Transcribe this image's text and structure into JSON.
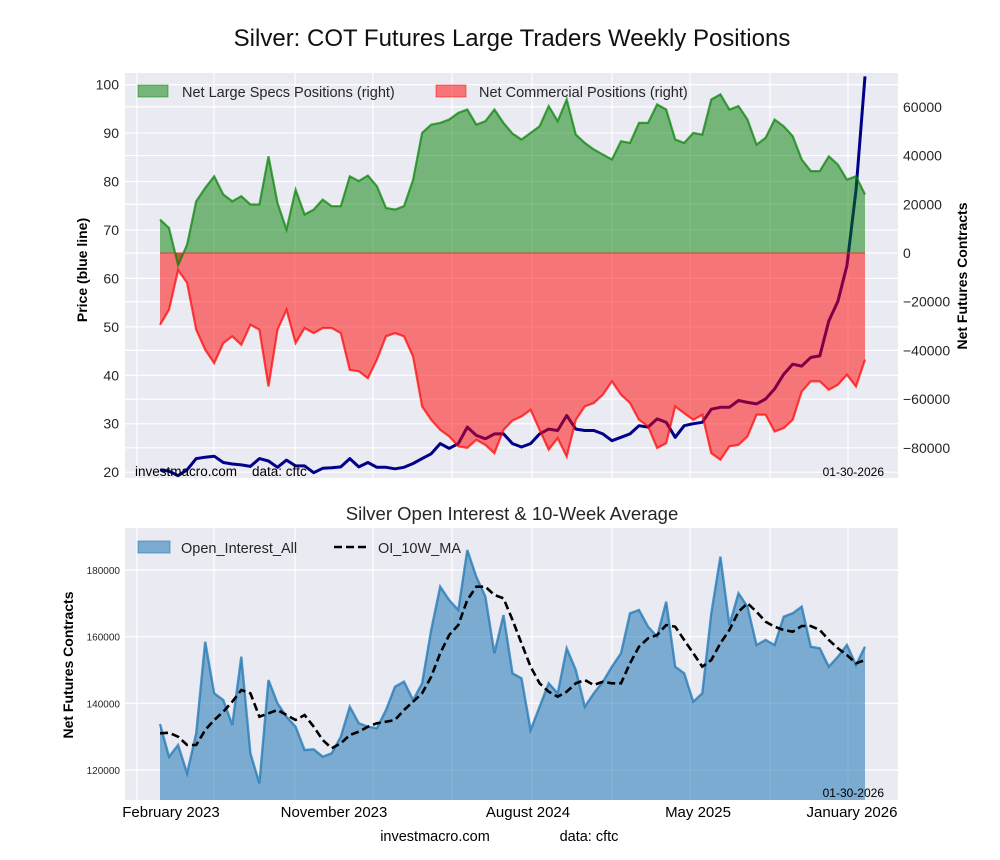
{
  "chart_data": [
    {
      "type": "area",
      "title": "Silver: COT Futures Large Traders Weekly Positions",
      "ylabel_left": "Price (blue line)",
      "ylabel_right": "Net Futures Contracts",
      "grid": true,
      "legend": "top-left",
      "left_ylim": [
        18.8,
        102.4
      ],
      "right_ylim": [
        -92400,
        73900
      ],
      "left_ticks": [
        20,
        30,
        40,
        50,
        60,
        70,
        80,
        90,
        100
      ],
      "right_ticks": [
        -80000,
        -60000,
        -40000,
        -20000,
        0,
        20000,
        40000,
        60000
      ],
      "annotation_site": "investmacro.com",
      "annotation_source": "data: cftc",
      "annotation_date": "01-30-2026",
      "dates": [
        "2023-01-31",
        "2023-02-14",
        "2023-02-28",
        "2023-03-14",
        "2023-03-28",
        "2023-04-11",
        "2023-04-25",
        "2023-05-09",
        "2023-05-23",
        "2023-06-06",
        "2023-06-20",
        "2023-07-04",
        "2023-07-18",
        "2023-08-01",
        "2023-08-15",
        "2023-08-29",
        "2023-09-12",
        "2023-09-26",
        "2023-10-10",
        "2023-10-24",
        "2023-11-07",
        "2023-11-21",
        "2023-12-05",
        "2023-12-19",
        "2024-01-02",
        "2024-01-16",
        "2024-01-30",
        "2024-02-13",
        "2024-02-27",
        "2024-03-12",
        "2024-03-26",
        "2024-04-09",
        "2024-04-23",
        "2024-05-07",
        "2024-05-21",
        "2024-06-04",
        "2024-06-18",
        "2024-07-02",
        "2024-07-16",
        "2024-07-30",
        "2024-08-13",
        "2024-08-27",
        "2024-09-10",
        "2024-09-24",
        "2024-10-08",
        "2024-10-22",
        "2024-11-05",
        "2024-11-19",
        "2024-12-03",
        "2024-12-17",
        "2024-12-31",
        "2025-01-14",
        "2025-01-28",
        "2025-02-11",
        "2025-02-25",
        "2025-03-11",
        "2025-03-25",
        "2025-04-08",
        "2025-04-22",
        "2025-05-06",
        "2025-05-20",
        "2025-06-03",
        "2025-06-17",
        "2025-07-01",
        "2025-07-15",
        "2025-07-29",
        "2025-08-12",
        "2025-08-26",
        "2025-09-09",
        "2025-09-23",
        "2025-10-07",
        "2025-10-21",
        "2025-11-04",
        "2025-11-18",
        "2025-12-02",
        "2025-12-16",
        "2025-12-30",
        "2026-01-13",
        "2026-01-27"
      ],
      "series": [
        {
          "name": "Net Large Specs Positions (right)",
          "axis": "right",
          "color": "#008000",
          "values": [
            13700,
            10300,
            -5000,
            3400,
            21200,
            26700,
            31500,
            24000,
            21200,
            23300,
            19900,
            19900,
            39700,
            20500,
            9600,
            26000,
            15800,
            17800,
            21900,
            19200,
            19200,
            31500,
            29500,
            31800,
            27400,
            18500,
            17800,
            19200,
            30100,
            49300,
            52700,
            53400,
            54800,
            57500,
            58900,
            52700,
            54100,
            58900,
            53400,
            49000,
            46600,
            49300,
            52000,
            60300,
            54100,
            63000,
            48600,
            45200,
            42500,
            40400,
            38400,
            45900,
            45200,
            53400,
            53400,
            61000,
            58900,
            46600,
            45200,
            49300,
            48600,
            63000,
            65100,
            58900,
            60300,
            54800,
            44500,
            47300,
            54800,
            52000,
            48000,
            38400,
            33600,
            33600,
            39700,
            36300,
            30100,
            31500,
            24000
          ]
        },
        {
          "name": "Net Commercial Positions (right)",
          "axis": "right",
          "color": "#ff0000",
          "values": [
            -29500,
            -23300,
            -7000,
            -12300,
            -31500,
            -39700,
            -45200,
            -37000,
            -34200,
            -37700,
            -29500,
            -31500,
            -54800,
            -31500,
            -23300,
            -37000,
            -30800,
            -32900,
            -30800,
            -30800,
            -32900,
            -48000,
            -48600,
            -51400,
            -43800,
            -34200,
            -32900,
            -34200,
            -42500,
            -63000,
            -68500,
            -72600,
            -75300,
            -79400,
            -80000,
            -76700,
            -78800,
            -82200,
            -72600,
            -68800,
            -67100,
            -64400,
            -72600,
            -80800,
            -76000,
            -83600,
            -68500,
            -63000,
            -61600,
            -58200,
            -52700,
            -58200,
            -61600,
            -68500,
            -71200,
            -80100,
            -78100,
            -63000,
            -65800,
            -68500,
            -66400,
            -82200,
            -84900,
            -79400,
            -78800,
            -75300,
            -66400,
            -66400,
            -73300,
            -71900,
            -68500,
            -56900,
            -52700,
            -52700,
            -56200,
            -54100,
            -50000,
            -54800,
            -43800
          ]
        },
        {
          "axis": "left",
          "color": "#00008b",
          "values": [
            20.5,
            20.2,
            19.3,
            20.5,
            22.8,
            23.1,
            23.3,
            22.0,
            21.7,
            21.5,
            21.2,
            22.8,
            22.3,
            21.0,
            22.5,
            21.3,
            21.3,
            19.9,
            20.8,
            20.9,
            21.1,
            22.8,
            21.1,
            22.0,
            21.0,
            21.0,
            20.7,
            21.0,
            21.8,
            22.8,
            23.8,
            25.9,
            24.9,
            25.9,
            29.3,
            27.6,
            26.9,
            27.9,
            27.9,
            25.9,
            25.2,
            25.9,
            27.9,
            28.9,
            28.6,
            31.7,
            28.9,
            28.6,
            28.6,
            27.9,
            26.5,
            27.2,
            27.9,
            29.6,
            29.3,
            31.0,
            30.3,
            27.2,
            29.6,
            30.0,
            30.3,
            33.0,
            33.4,
            33.4,
            34.8,
            34.4,
            34.1,
            35.1,
            37.2,
            40.2,
            42.3,
            41.9,
            43.7,
            44.0,
            51.2,
            55.3,
            62.6,
            78.2,
            101.7
          ]
        }
      ]
    },
    {
      "type": "area",
      "title": "Silver Open Interest & 10-Week Average",
      "ylabel": "Net Futures Contracts",
      "grid": true,
      "legend": "top-left",
      "ylim": [
        111000,
        192600
      ],
      "y_ticks": [
        120000,
        140000,
        160000,
        180000
      ],
      "x_tick_labels": [
        "February 2023",
        "November 2023",
        "August 2024",
        "May 2025",
        "January 2026"
      ],
      "annotation_date": "01-30-2026",
      "series": [
        {
          "name": "Open_Interest_All",
          "style": "filled area",
          "color": "#1f77b4",
          "values": [
            133800,
            124000,
            127500,
            119000,
            131000,
            158500,
            143000,
            141000,
            133500,
            154000,
            125000,
            116000,
            147000,
            140000,
            136000,
            133000,
            126000,
            126200,
            124000,
            125000,
            130000,
            139000,
            134000,
            133000,
            132500,
            138000,
            145000,
            146500,
            141000,
            146000,
            162000,
            175000,
            171000,
            168000,
            186000,
            178000,
            172000,
            155000,
            166500,
            149000,
            147500,
            132000,
            139000,
            146000,
            143000,
            156500,
            150000,
            139000,
            143000,
            146500,
            151000,
            155000,
            167000,
            168000,
            163000,
            160000,
            170500,
            151000,
            149000,
            140500,
            143000,
            167000,
            184000,
            163500,
            173000,
            169000,
            157500,
            159000,
            157500,
            166000,
            167000,
            169000,
            157000,
            156500,
            151000,
            154000,
            157500,
            151500,
            157000
          ]
        },
        {
          "name": "OI_10W_MA",
          "style": "dashed line",
          "color": "#000000",
          "values": [
            131000,
            131200,
            130000,
            127500,
            127500,
            132000,
            135000,
            137500,
            140500,
            144000,
            143000,
            136000,
            137000,
            138000,
            136500,
            135000,
            136500,
            133000,
            129000,
            126500,
            128000,
            130500,
            131500,
            133000,
            134000,
            134500,
            135000,
            138000,
            140500,
            143000,
            148000,
            155000,
            160500,
            163500,
            171000,
            175000,
            175000,
            172500,
            171500,
            165000,
            158000,
            151000,
            146000,
            143500,
            142000,
            143500,
            146000,
            147000,
            145500,
            146500,
            146000,
            146000,
            152000,
            157000,
            159500,
            160500,
            163500,
            163000,
            159000,
            155000,
            151000,
            153000,
            158000,
            162000,
            167500,
            170000,
            167500,
            164500,
            163000,
            162000,
            161500,
            163200,
            163200,
            162000,
            159000,
            156500,
            154500,
            152000,
            153000
          ]
        }
      ]
    }
  ],
  "footer": {
    "site": "investmacro.com",
    "source": "data: cftc"
  }
}
